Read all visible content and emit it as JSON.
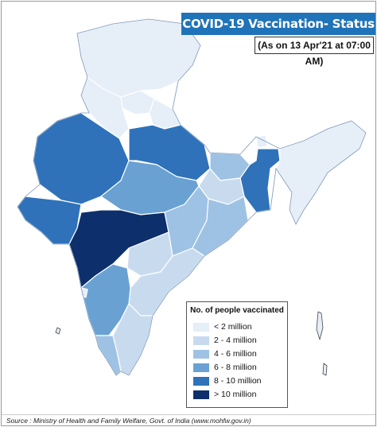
{
  "title": "COVID-19 Vaccination- Status",
  "subtitle": "(As on 13 Apr'21 at 07:00 AM)",
  "legend": {
    "title": "No. of people vaccinated",
    "items": [
      {
        "label": "< 2 million",
        "color": "#e6eef8"
      },
      {
        "label": "2 - 4 million",
        "color": "#c8dbee"
      },
      {
        "label": "4 - 6 million",
        "color": "#9ec2e3"
      },
      {
        "label": "6 - 8 million",
        "color": "#6aa1d3"
      },
      {
        "label": "8 - 10 million",
        "color": "#2f72ba"
      },
      {
        "label": "> 10 million",
        "color": "#0d2f6b"
      }
    ]
  },
  "source": "Source : Ministry of Health and Family Welfare, Govt. of India (www.mohfw.gov.in)"
}
